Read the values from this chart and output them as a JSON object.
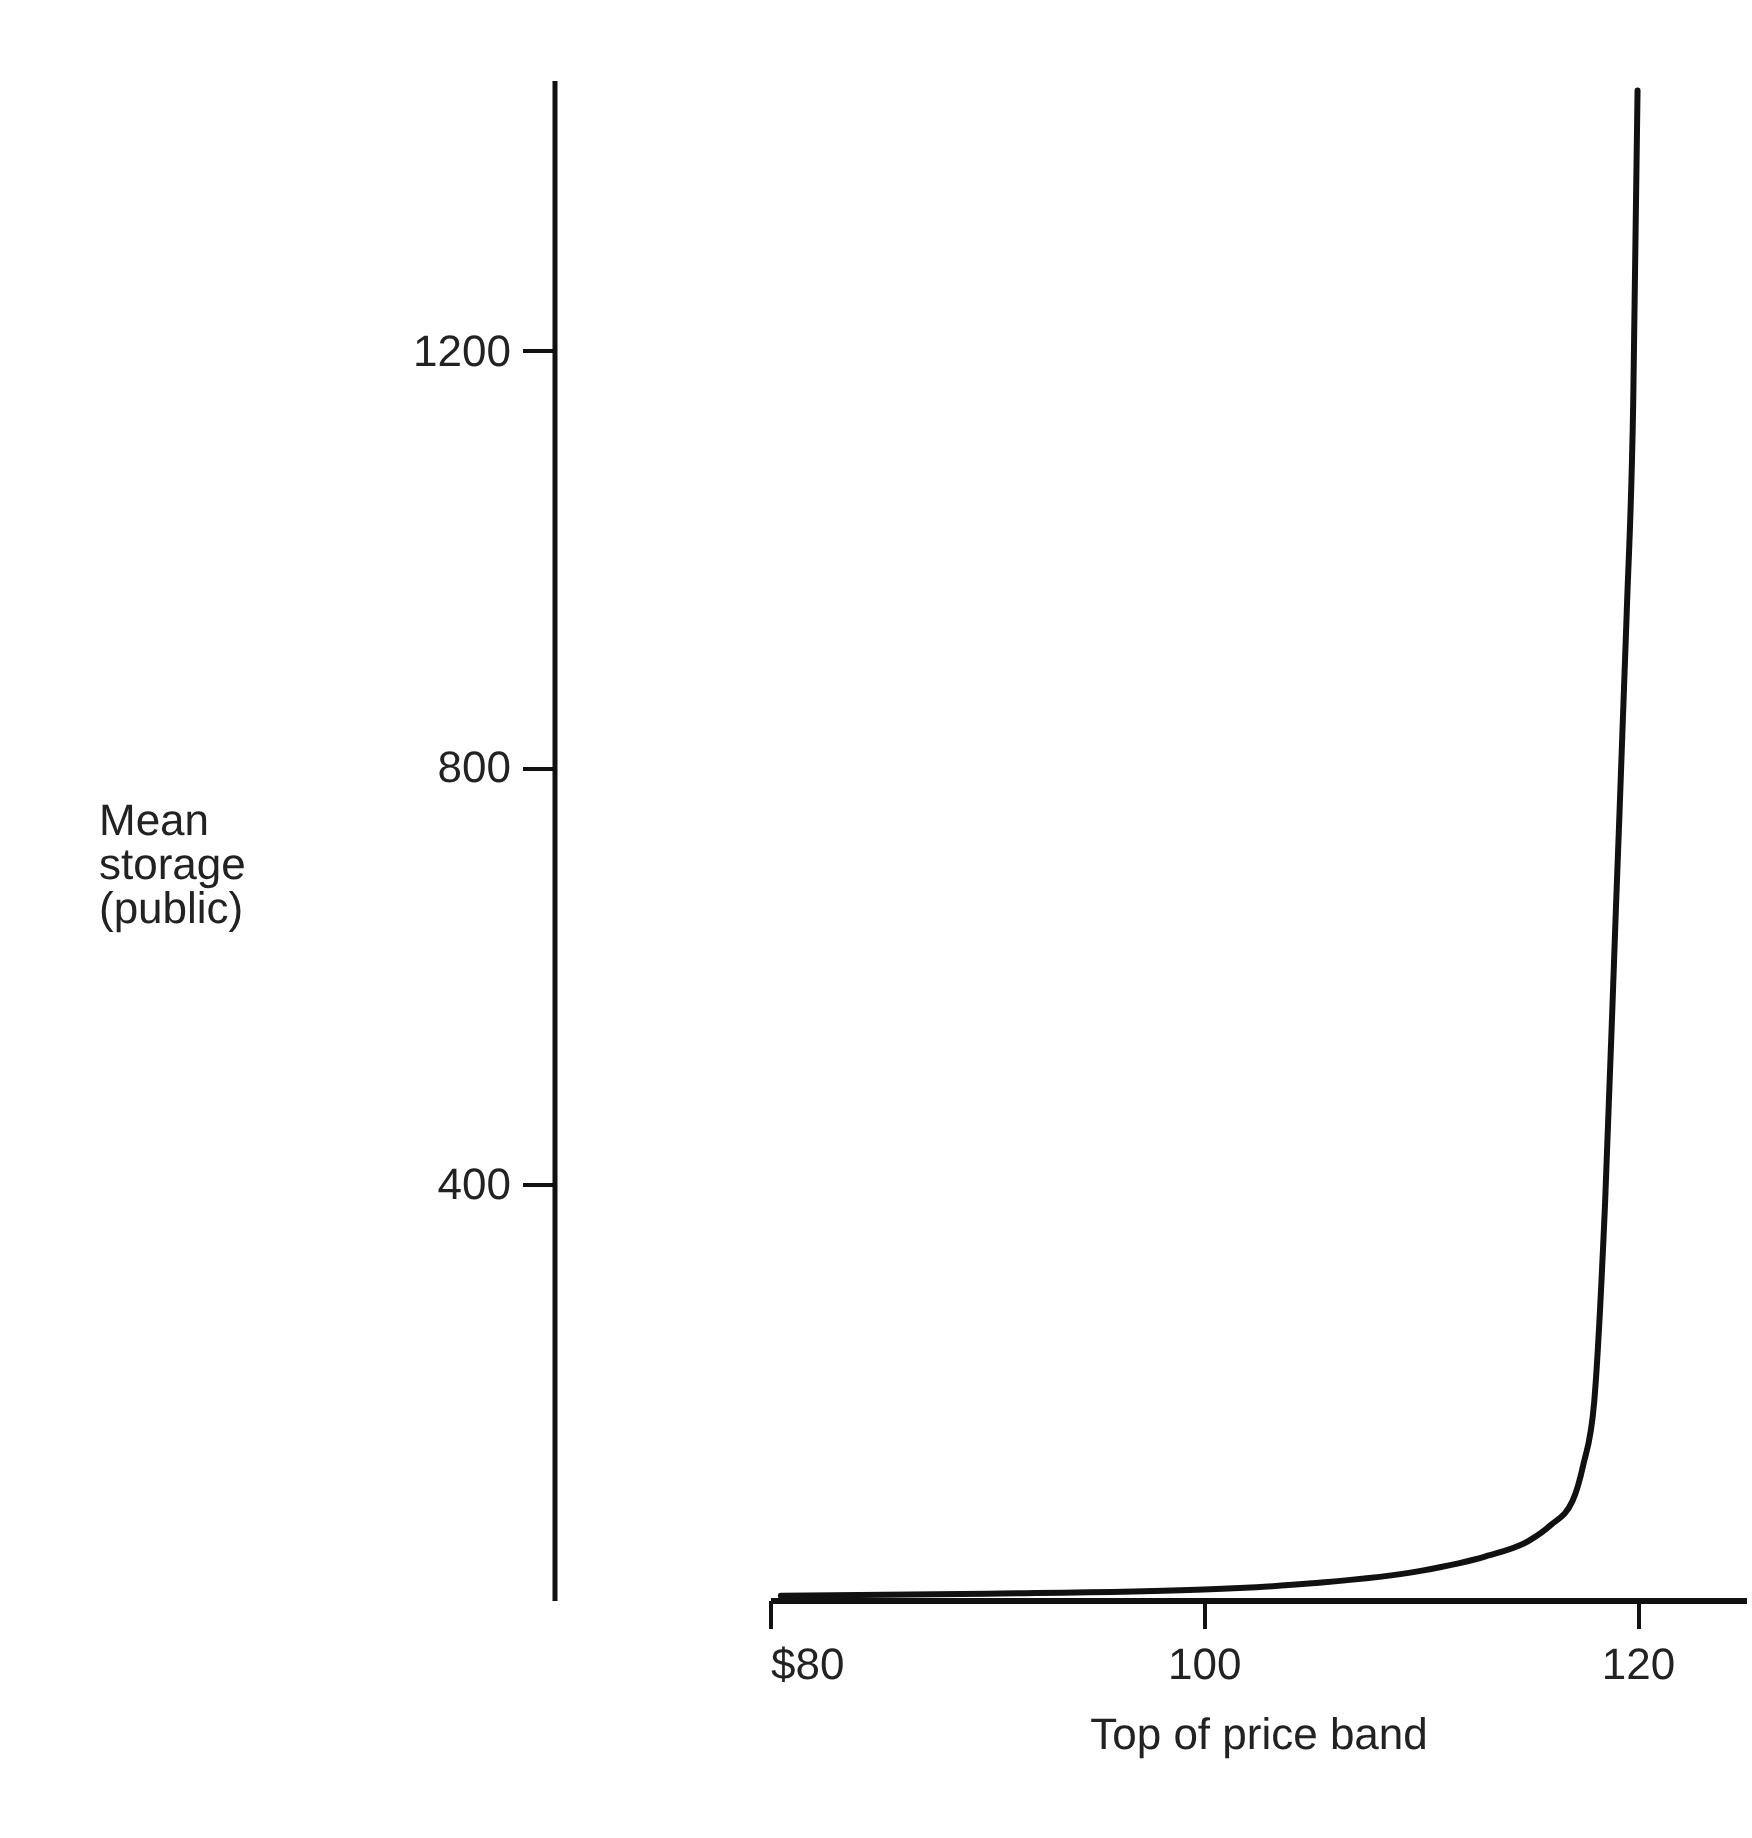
{
  "chart_data": {
    "type": "line",
    "xlabel": "Top of price band",
    "ylabel": "Mean storage (public)",
    "x": [
      80.5,
      90,
      100,
      105,
      110,
      113,
      115,
      116,
      117,
      117.5,
      118,
      118.5,
      119,
      119.5,
      119.8,
      120
    ],
    "series": [
      {
        "color": "#111111",
        "values": [
          4,
          6,
          10,
          16,
          28,
          42,
          57,
          72,
          95,
          130,
          190,
          380,
          663,
          948,
          1150,
          1450
        ]
      }
    ],
    "xlim": [
      80,
      125
    ],
    "ylim": [
      0,
      1460
    ],
    "xticks": [
      {
        "value": 80,
        "label": "$80"
      },
      100,
      120
    ],
    "yticks": [
      400,
      800,
      1200
    ],
    "grid": false,
    "marker": "none",
    "line_style": "solid"
  }
}
